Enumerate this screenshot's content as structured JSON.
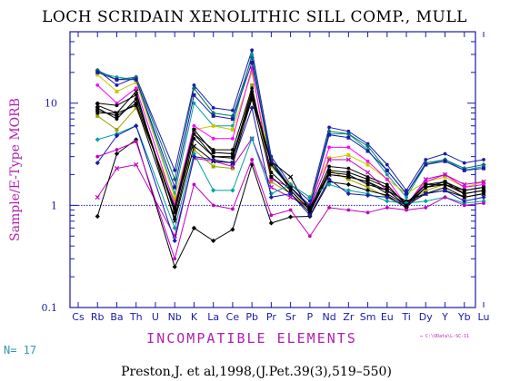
{
  "chart_data": {
    "type": "line",
    "title": "LOCH SCRIDAIN XENOLITHIC SILL COMP., MULL",
    "xlabel": "INCOMPATIBLE ELEMENTS",
    "ylabel": "Sample/E-Type MORB",
    "yscale": "log",
    "ylim": [
      0.1,
      50
    ],
    "reference_line": 1,
    "categories": [
      "Cs",
      "Rb",
      "Ba",
      "Th",
      "U",
      "Nb",
      "K",
      "La",
      "Ce",
      "Pb",
      "Pr",
      "Sr",
      "P",
      "Nd",
      "Zr",
      "Sm",
      "Eu",
      "Ti",
      "Dy",
      "Y",
      "Yb",
      "Lu"
    ],
    "x_tick_labels": [
      "Cs",
      "Rb",
      "Ba",
      "Th",
      "U",
      "Nb",
      "K",
      "La",
      "Ce",
      "Pb",
      "Pr",
      "Sr",
      "P",
      "Nd",
      "Zr",
      "Sm",
      "Eu",
      "Ti",
      "Dy",
      "Y",
      "Yb",
      "Lu"
    ],
    "y_tick_labels": [
      {
        "value": 10,
        "label": "10"
      },
      {
        "value": 1,
        "label": "1"
      },
      {
        "value": 0.1,
        "label": "0.1"
      }
    ],
    "series": [
      {
        "color": "#1a1aa8",
        "marker": "dot",
        "values": [
          null,
          21,
          15,
          18,
          null,
          2.2,
          15,
          9,
          8.5,
          33,
          3,
          1.6,
          1.1,
          5.8,
          5.3,
          4,
          2.5,
          1.4,
          2.8,
          3.2,
          2.6,
          2.8
        ]
      },
      {
        "color": "#00a0a0",
        "marker": "dot",
        "values": [
          null,
          20,
          18,
          17,
          null,
          1.3,
          10,
          6,
          6,
          30,
          2.4,
          1.5,
          0.95,
          5,
          5,
          3.5,
          2,
          1.2,
          2.5,
          2.8,
          2.2,
          2.4
        ]
      },
      {
        "color": "#007070",
        "marker": "diamond",
        "values": [
          null,
          21,
          17,
          18,
          null,
          1.8,
          14,
          8,
          7.5,
          28,
          2.8,
          1.5,
          1,
          5.3,
          5,
          3.8,
          2.2,
          1.3,
          2.6,
          2.8,
          2.3,
          2.5
        ]
      },
      {
        "color": "#c8c800",
        "marker": "square",
        "values": [
          null,
          19,
          13,
          16,
          null,
          1.2,
          5.5,
          6,
          5.5,
          20,
          2.4,
          1.6,
          1.2,
          2.9,
          3.1,
          2.5,
          1.8,
          1.3,
          1.7,
          1.9,
          1.5,
          1.7
        ]
      },
      {
        "color": "#a0a000",
        "marker": "square",
        "values": [
          null,
          7.5,
          5.5,
          9,
          null,
          1.1,
          3.5,
          2.4,
          2.3,
          15,
          1.7,
          1.3,
          0.9,
          2.2,
          1.8,
          1.5,
          1.2,
          0.95,
          1.4,
          1.6,
          1.3,
          1.4
        ]
      },
      {
        "color": "#ff00ff",
        "marker": "dot",
        "values": [
          null,
          15,
          10,
          14,
          null,
          1,
          6,
          4.5,
          4.5,
          22,
          1.8,
          1.5,
          0.95,
          3.7,
          3.7,
          2.7,
          1.8,
          1,
          1.7,
          2,
          1.5,
          1.6
        ]
      },
      {
        "color": "#c000c0",
        "marker": "x",
        "values": [
          null,
          1.2,
          2.3,
          2.5,
          null,
          0.5,
          2.9,
          2.7,
          2.4,
          4.5,
          1.5,
          1.2,
          0.95,
          2.8,
          2.8,
          2.1,
          1.4,
          1,
          1.8,
          2,
          1.6,
          1.7
        ]
      },
      {
        "color": "#000000",
        "marker": "dot",
        "values": [
          null,
          10,
          9.5,
          12,
          null,
          0.85,
          5,
          3.5,
          3.5,
          14,
          2.1,
          1.4,
          0.9,
          2.4,
          2.3,
          1.9,
          1.6,
          1,
          1.6,
          1.6,
          1.4,
          1.5
        ]
      },
      {
        "color": "#000000",
        "marker": "square",
        "values": [
          null,
          8.5,
          7.5,
          10,
          null,
          0.95,
          5.5,
          3.3,
          3.2,
          11,
          1.9,
          1.3,
          0.85,
          2.2,
          2.1,
          1.8,
          1.5,
          1.05,
          1.6,
          1.7,
          1.4,
          1.5
        ]
      },
      {
        "color": "#000000",
        "marker": "dot",
        "values": [
          null,
          8,
          8,
          9.5,
          null,
          0.75,
          4.5,
          3,
          2.9,
          12,
          2.7,
          1.4,
          0.9,
          2,
          1.9,
          1.7,
          1.4,
          1.1,
          1.3,
          1.5,
          1.2,
          1.3
        ]
      },
      {
        "color": "#000000",
        "marker": "x",
        "values": [
          null,
          9.5,
          8,
          13,
          null,
          0.7,
          3.8,
          2.7,
          2.6,
          11,
          2.7,
          1.9,
          0.85,
          2,
          1.9,
          1.7,
          1.3,
          1,
          1.3,
          1.4,
          1.2,
          1.3
        ]
      },
      {
        "color": "#000000",
        "marker": "diamond",
        "values": [
          null,
          0.78,
          3.2,
          4.4,
          null,
          0.25,
          0.6,
          0.45,
          0.58,
          2.5,
          0.67,
          0.77,
          0.78,
          1.7,
          1.6,
          1.4,
          1.25,
          0.95,
          1.5,
          1.7,
          1.3,
          1.4
        ]
      },
      {
        "color": "#00a0a0",
        "marker": "diamond",
        "values": [
          null,
          4.4,
          5,
          6,
          null,
          0.6,
          3.2,
          1.4,
          1.4,
          4.5,
          1.3,
          1.6,
          1.2,
          1.6,
          1.4,
          1.3,
          1.1,
          1.05,
          1.1,
          1.2,
          1.05,
          1.1
        ]
      },
      {
        "color": "#1a1aa8",
        "marker": "diamond",
        "values": [
          null,
          2.6,
          4.8,
          6,
          null,
          0.45,
          3,
          2.8,
          2.6,
          9,
          1.2,
          1.3,
          0.8,
          1.8,
          1.3,
          1.25,
          1.2,
          1,
          1.3,
          1.4,
          1.1,
          1.2
        ]
      },
      {
        "color": "#c000c0",
        "marker": "dot",
        "values": [
          null,
          3,
          3.5,
          4.2,
          null,
          0.3,
          1.6,
          1,
          0.92,
          2.8,
          0.8,
          0.9,
          0.5,
          0.95,
          0.9,
          0.85,
          0.95,
          0.9,
          0.95,
          1.2,
          1,
          1.05
        ]
      },
      {
        "color": "#1a1aa8",
        "marker": "square",
        "values": [
          null,
          20,
          17,
          17,
          null,
          1.5,
          12,
          7.5,
          7,
          25,
          2.7,
          1.5,
          1,
          4.9,
          4.6,
          3.4,
          2.2,
          1.3,
          2.5,
          2.7,
          2.2,
          2.3
        ]
      },
      {
        "color": "#000000",
        "marker": "dot",
        "values": [
          null,
          9,
          7,
          11,
          null,
          0.9,
          5,
          3,
          3,
          13,
          2.5,
          1.5,
          0.95,
          2.1,
          2,
          1.6,
          1.4,
          1,
          1.5,
          1.6,
          1.3,
          1.4
        ]
      }
    ]
  },
  "n_label": "N= 17",
  "file_label": "↔ C:\\VData\\L-SC-11",
  "citation": "Preston,J. et al,1998,(J.Pet.39(3),519–550)"
}
